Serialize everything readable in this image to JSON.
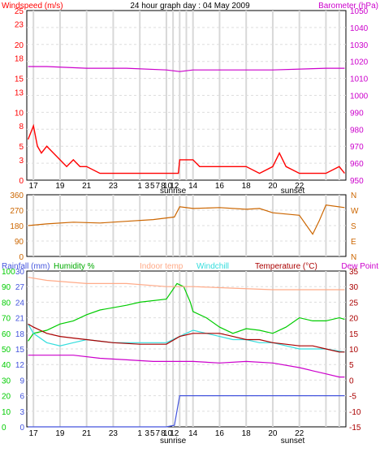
{
  "header": {
    "title": "24 hour graph day : 04 May 2009",
    "left_label": "Windspeed (m/s)",
    "right_label": "Barometer (hPa)"
  },
  "bottom_headers": {
    "rainfall": "Rainfall (mm)",
    "humidity": "Humidity %",
    "indoor": "Indoor temp",
    "windchill": "Windchill",
    "temperature": "Temperature (°C)",
    "dewpoint": "Dew Point"
  },
  "x_axis": {
    "ticks": [
      "17",
      "19",
      "21",
      "23",
      "1",
      "3",
      "5",
      "7",
      "8",
      "10",
      "12",
      "14",
      "16",
      "18",
      "20",
      "22"
    ],
    "sunrise_label": "sunrise",
    "sunset_label": "sunset"
  },
  "colors": {
    "windspeed": "#ff0000",
    "windavg": "#0000cc",
    "barometer": "#cc00cc",
    "direction": "#cc6600",
    "humidity": "#00cc00",
    "indoor": "#ffaa88",
    "windchill": "#33dddd",
    "temperature": "#aa0000",
    "dewpoint": "#cc00cc",
    "rainfall": "#4455dd"
  },
  "chart_data": [
    {
      "type": "line",
      "title": "24 hour graph day : 04 May 2009",
      "x_range": [
        15.5,
        39.5
      ],
      "series": [
        {
          "name": "Windspeed (m/s)",
          "axis": "left",
          "points": [
            [
              15.6,
              6
            ],
            [
              16,
              8
            ],
            [
              16.3,
              5
            ],
            [
              16.6,
              4
            ],
            [
              17,
              5
            ],
            [
              17.5,
              4
            ],
            [
              18,
              3
            ],
            [
              18.5,
              2
            ],
            [
              19,
              3
            ],
            [
              19.5,
              2
            ],
            [
              20,
              2
            ],
            [
              21,
              1
            ],
            [
              22,
              1
            ],
            [
              23,
              1
            ],
            [
              24,
              1
            ],
            [
              25,
              1
            ],
            [
              26,
              1
            ],
            [
              26.9,
              1
            ],
            [
              27,
              3
            ],
            [
              28,
              3
            ],
            [
              28.5,
              2
            ],
            [
              29,
              2
            ],
            [
              30,
              2
            ],
            [
              31,
              2
            ],
            [
              32,
              2
            ],
            [
              33,
              1
            ],
            [
              34,
              2
            ],
            [
              34.5,
              4
            ],
            [
              35,
              2
            ],
            [
              36,
              1
            ],
            [
              37,
              1
            ],
            [
              38,
              1
            ],
            [
              39,
              2
            ],
            [
              39.4,
              1
            ]
          ]
        },
        {
          "name": "Barometer (hPa)",
          "axis": "right",
          "points": [
            [
              15.6,
              1017
            ],
            [
              17,
              1017
            ],
            [
              20,
              1016
            ],
            [
              23,
              1016
            ],
            [
              26,
              1015
            ],
            [
              27,
              1014
            ],
            [
              28,
              1015
            ],
            [
              30,
              1015
            ],
            [
              34,
              1015
            ],
            [
              38,
              1016
            ],
            [
              39.4,
              1016
            ]
          ]
        }
      ],
      "left_axis": {
        "label": "Windspeed (m/s)",
        "ticks": [
          0,
          3,
          5,
          8,
          10,
          13,
          15,
          18,
          20,
          23,
          25
        ],
        "range": [
          0,
          25
        ]
      },
      "right_axis": {
        "label": "Barometer (hPa)",
        "ticks": [
          950,
          960,
          970,
          980,
          990,
          1000,
          1010,
          1020,
          1030,
          1040,
          1050
        ],
        "range": [
          950,
          1050
        ]
      }
    },
    {
      "type": "line",
      "series": [
        {
          "name": "Wind direction",
          "points": [
            [
              15.6,
              180
            ],
            [
              17,
              190
            ],
            [
              19,
              200
            ],
            [
              21,
              195
            ],
            [
              23,
              205
            ],
            [
              25,
              215
            ],
            [
              26.6,
              230
            ],
            [
              27,
              290
            ],
            [
              28,
              280
            ],
            [
              30,
              285
            ],
            [
              32,
              275
            ],
            [
              33,
              280
            ],
            [
              34,
              255
            ],
            [
              36,
              240
            ],
            [
              37,
              130
            ],
            [
              37.5,
              210
            ],
            [
              38,
              300
            ],
            [
              39.4,
              285
            ]
          ]
        }
      ],
      "left_axis": {
        "ticks": [
          0,
          90,
          180,
          270,
          360
        ],
        "range": [
          0,
          360
        ]
      },
      "right_axis": {
        "ticks": [
          "N",
          "E",
          "S",
          "W",
          "N"
        ]
      }
    },
    {
      "type": "line",
      "series": [
        {
          "name": "Humidity %",
          "axis": "humidity",
          "points": [
            [
              15.6,
              55
            ],
            [
              16,
              60
            ],
            [
              17,
              62
            ],
            [
              18,
              66
            ],
            [
              19,
              68
            ],
            [
              20,
              72
            ],
            [
              21,
              75
            ],
            [
              23,
              78
            ],
            [
              24,
              80
            ],
            [
              26,
              82
            ],
            [
              26.8,
              92
            ],
            [
              27.3,
              90
            ],
            [
              27.8,
              80
            ],
            [
              28,
              74
            ],
            [
              29,
              70
            ],
            [
              30,
              64
            ],
            [
              31,
              60
            ],
            [
              32,
              63
            ],
            [
              33,
              62
            ],
            [
              34,
              60
            ],
            [
              35,
              64
            ],
            [
              36,
              70
            ],
            [
              37,
              68
            ],
            [
              38,
              68
            ],
            [
              39,
              70
            ],
            [
              39.4,
              69
            ]
          ]
        },
        {
          "name": "Indoor temp",
          "axis": "temp",
          "points": [
            [
              15.6,
              33
            ],
            [
              17,
              32
            ],
            [
              20,
              31
            ],
            [
              23,
              31
            ],
            [
              26,
              30
            ],
            [
              28,
              30
            ],
            [
              31,
              29.5
            ],
            [
              34,
              29
            ],
            [
              37,
              29
            ],
            [
              39.4,
              29
            ]
          ]
        },
        {
          "name": "Windchill",
          "axis": "temp",
          "points": [
            [
              15.6,
              18
            ],
            [
              16,
              15
            ],
            [
              17,
              12
            ],
            [
              18,
              11
            ],
            [
              19,
              12
            ],
            [
              20,
              13
            ],
            [
              22,
              12
            ],
            [
              24,
              12
            ],
            [
              26,
              12
            ],
            [
              27,
              14
            ],
            [
              28,
              16
            ],
            [
              29,
              15
            ],
            [
              30,
              14
            ],
            [
              31,
              13
            ],
            [
              32,
              13
            ],
            [
              33,
              12
            ],
            [
              34,
              12
            ],
            [
              35,
              11
            ],
            [
              36,
              10
            ],
            [
              37,
              10
            ],
            [
              38,
              10
            ],
            [
              39.4,
              9
            ]
          ]
        },
        {
          "name": "Temperature (°C)",
          "axis": "temp",
          "points": [
            [
              15.6,
              18
            ],
            [
              16,
              17
            ],
            [
              17,
              15
            ],
            [
              18,
              14
            ],
            [
              19,
              13.5
            ],
            [
              20,
              13
            ],
            [
              22,
              12
            ],
            [
              24,
              11.5
            ],
            [
              26,
              11.5
            ],
            [
              27,
              14
            ],
            [
              28,
              15
            ],
            [
              29,
              15
            ],
            [
              30,
              15
            ],
            [
              31,
              14
            ],
            [
              32,
              13
            ],
            [
              33,
              13
            ],
            [
              34,
              12
            ],
            [
              35,
              11.5
            ],
            [
              36,
              11
            ],
            [
              37,
              11
            ],
            [
              38,
              10
            ],
            [
              39,
              9
            ],
            [
              39.4,
              9
            ]
          ]
        },
        {
          "name": "Dew Point",
          "axis": "temp",
          "points": [
            [
              15.6,
              8
            ],
            [
              17,
              8
            ],
            [
              19,
              8
            ],
            [
              21,
              7
            ],
            [
              23,
              6.5
            ],
            [
              25,
              6
            ],
            [
              27,
              6
            ],
            [
              28,
              6
            ],
            [
              30,
              5.5
            ],
            [
              32,
              6
            ],
            [
              34,
              5.5
            ],
            [
              36,
              4
            ],
            [
              37,
              3
            ],
            [
              38,
              2
            ],
            [
              39,
              1
            ],
            [
              39.4,
              1
            ]
          ]
        },
        {
          "name": "Rainfall (mm)",
          "axis": "rain",
          "points": [
            [
              15.6,
              0
            ],
            [
              26,
              0
            ],
            [
              26.6,
              0.3
            ],
            [
              27,
              6
            ],
            [
              30,
              6
            ],
            [
              39.4,
              6
            ]
          ]
        }
      ],
      "rain_axis": {
        "label": "Rainfall (mm)",
        "ticks": [
          0,
          3,
          6,
          9,
          12,
          15,
          18,
          21,
          24,
          27,
          30
        ],
        "range": [
          0,
          30
        ]
      },
      "humidity_axis": {
        "label": "Humidity %",
        "ticks": [
          0,
          10,
          20,
          30,
          40,
          50,
          60,
          70,
          80,
          90,
          100
        ],
        "range": [
          0,
          100
        ]
      },
      "temp_axis": {
        "label": "Temperature (°C)",
        "ticks": [
          -15,
          -10,
          -5,
          0,
          5,
          10,
          15,
          20,
          25,
          30,
          35
        ],
        "range": [
          -15,
          35
        ]
      }
    }
  ]
}
